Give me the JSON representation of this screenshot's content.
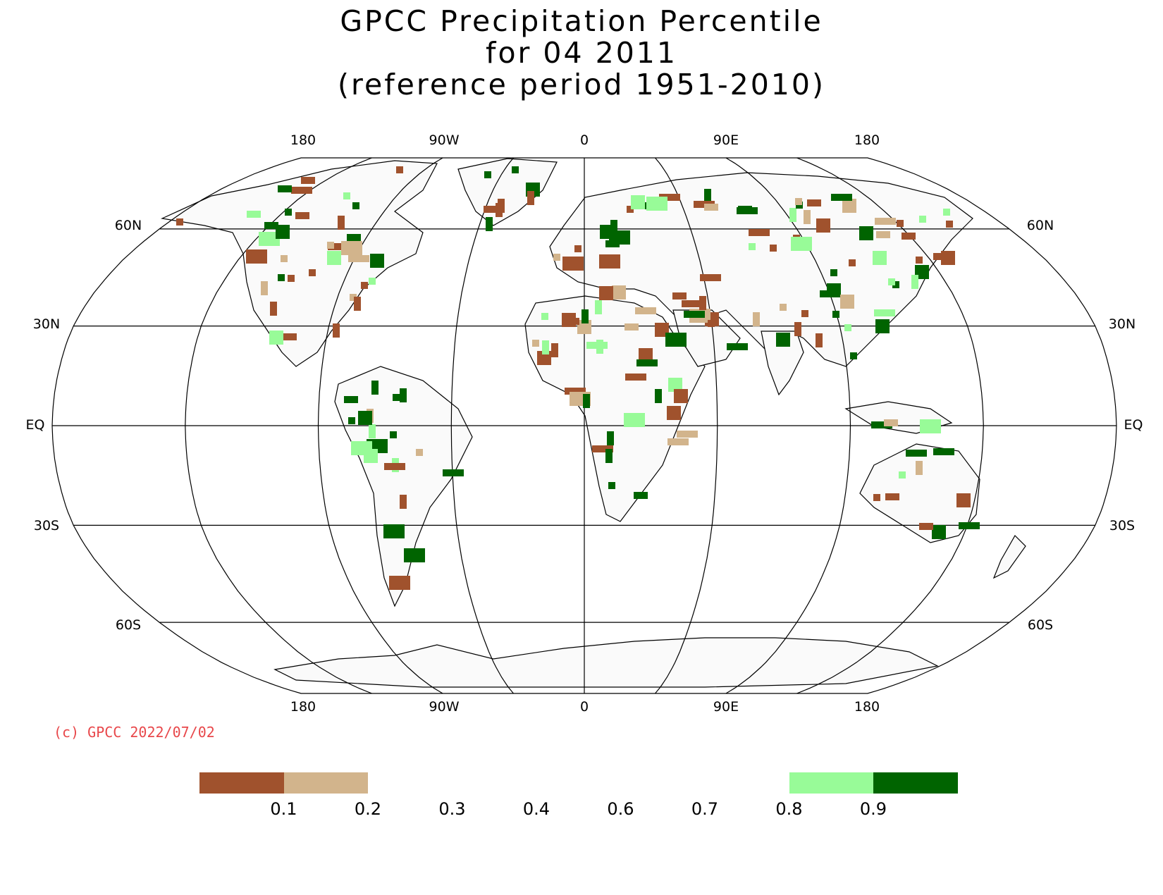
{
  "title": {
    "line1": "GPCC Precipitation Percentile",
    "line2": "for 04 2011",
    "line3": "(reference period 1951-2010)"
  },
  "copyright": "(c) GPCC 2022/07/02",
  "map": {
    "projection": "Robinson",
    "lon_labels_top": [
      "180",
      "90W",
      "0",
      "90E",
      "180"
    ],
    "lon_labels_bottom": [
      "180",
      "90W",
      "0",
      "90E",
      "180"
    ],
    "lat_labels": {
      "n60": "60N",
      "n30": "30N",
      "eq": "EQ",
      "s30": "30S",
      "s60": "60S"
    }
  },
  "legend": {
    "bins": [
      {
        "from": 0.0,
        "to": 0.1,
        "color": "#a0522d"
      },
      {
        "from": 0.1,
        "to": 0.2,
        "color": "#d2b48c"
      },
      {
        "from": 0.2,
        "to": 0.3,
        "color": "#ffffff"
      },
      {
        "from": 0.3,
        "to": 0.4,
        "color": "#ffffff"
      },
      {
        "from": 0.4,
        "to": 0.6,
        "color": "#ffffff"
      },
      {
        "from": 0.6,
        "to": 0.7,
        "color": "#ffffff"
      },
      {
        "from": 0.7,
        "to": 0.8,
        "color": "#ffffff"
      },
      {
        "from": 0.8,
        "to": 0.9,
        "color": "#98fb98"
      },
      {
        "from": 0.9,
        "to": 1.0,
        "color": "#006400"
      }
    ],
    "labels": [
      "0.1",
      "0.2",
      "0.3",
      "0.4",
      "0.6",
      "0.7",
      "0.8",
      "0.9"
    ]
  }
}
